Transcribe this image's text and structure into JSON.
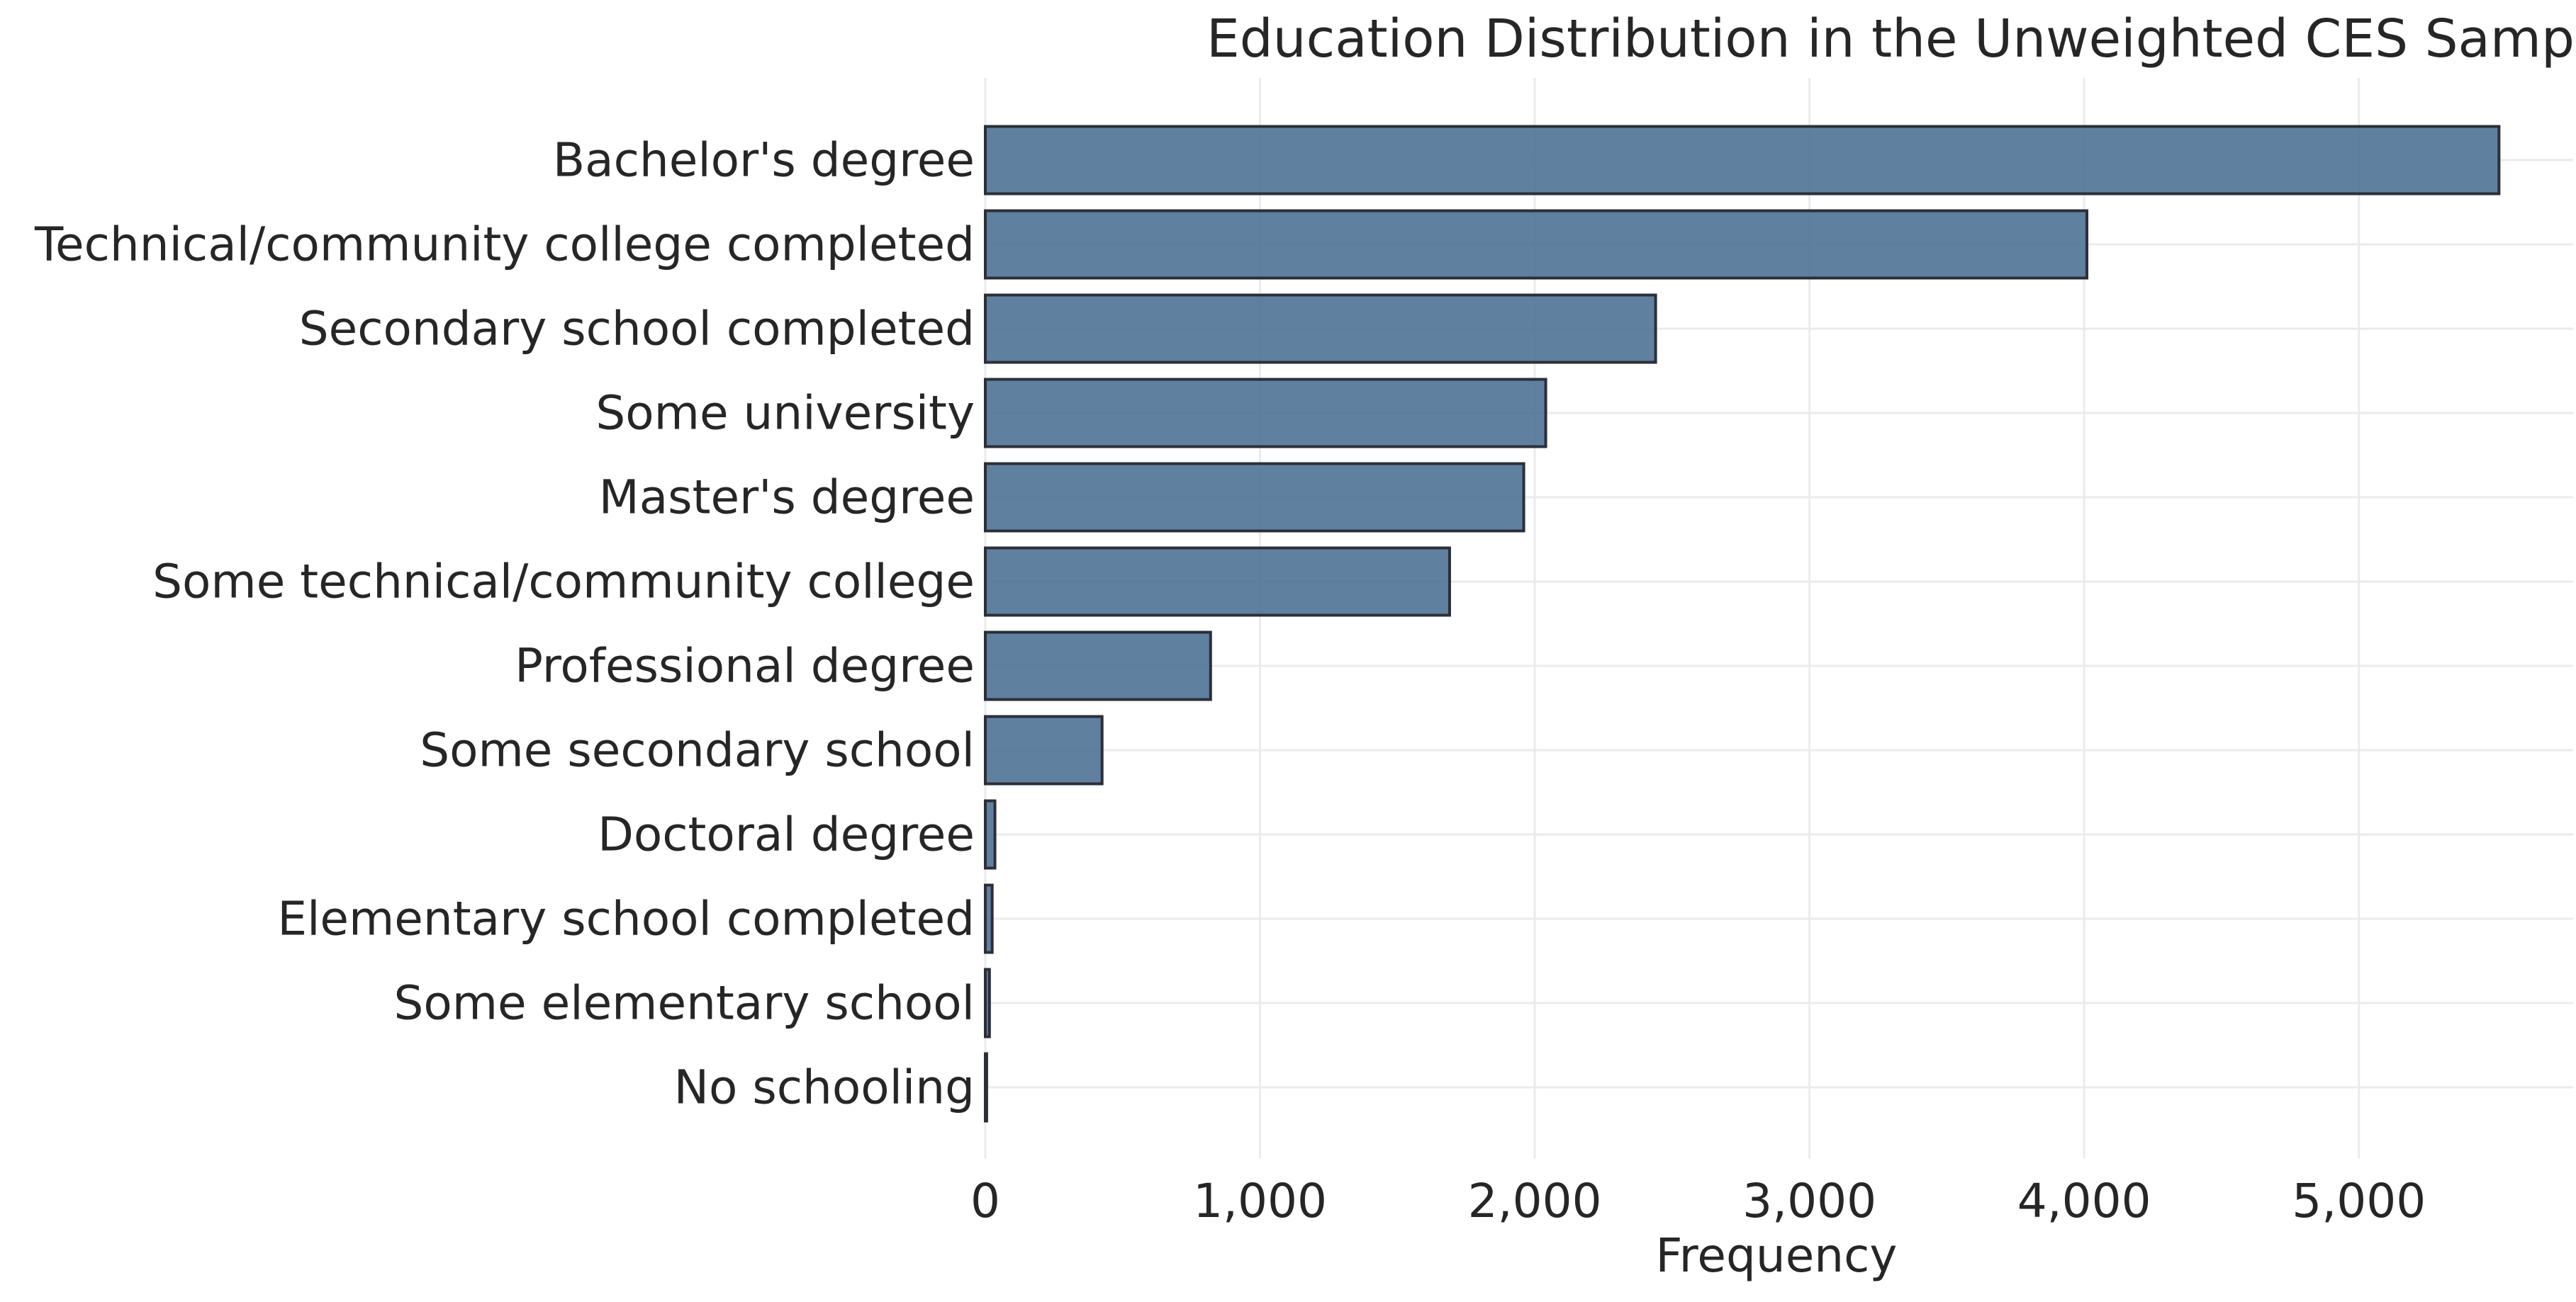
{
  "chart_data": {
    "type": "bar",
    "orientation": "horizontal",
    "title": "Education Distribution in the Unweighted CES Sample",
    "xlabel": "Frequency",
    "ylabel": "",
    "categories": [
      "Bachelor's degree",
      "Technical/community college completed",
      "Secondary school completed",
      "Some university",
      "Master's degree",
      "Some technical/community college",
      "Professional degree",
      "Some secondary school",
      "Doctoral degree",
      "Elementary school completed",
      "Some elementary school",
      "No schooling"
    ],
    "values": [
      5510,
      4010,
      2440,
      2040,
      1960,
      1690,
      820,
      425,
      35,
      25,
      15,
      5
    ],
    "xlim": [
      0,
      5780
    ],
    "xticks": [
      0,
      1000,
      2000,
      3000,
      4000,
      5000
    ],
    "xtick_labels": [
      "0",
      "1,000",
      "2,000",
      "3,000",
      "4,000",
      "5,000"
    ],
    "grid": true,
    "legend": "none",
    "colors": {
      "bar_fill": "#4f7296",
      "bar_edge": "#2b2f38",
      "grid": "#ebebeb",
      "text": "#262626"
    }
  }
}
